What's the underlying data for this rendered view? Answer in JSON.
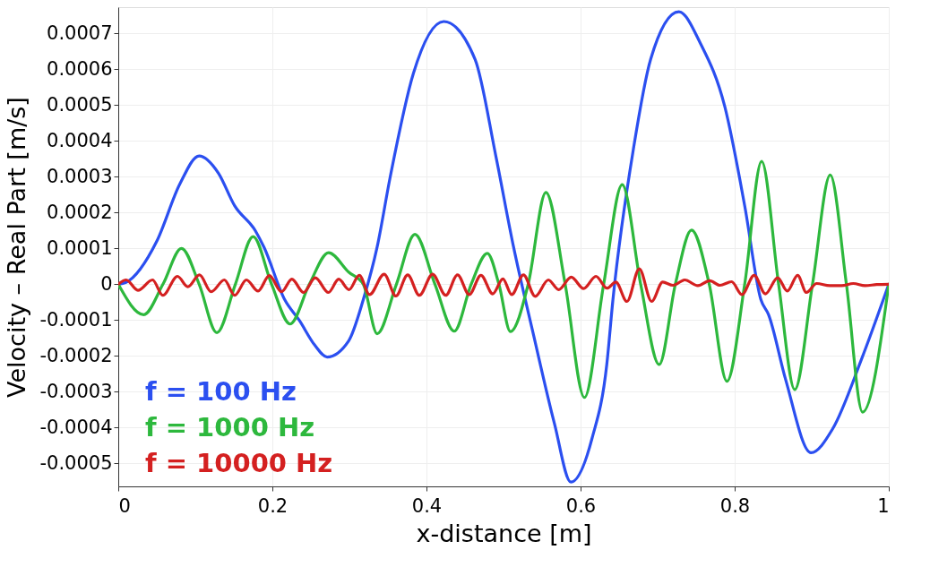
{
  "chart_data": {
    "type": "line",
    "xlabel": "x-distance [m]",
    "ylabel": "Velocity – Real Part [m/s]",
    "xlim": [
      0,
      1
    ],
    "xticks": [
      0,
      0.2,
      0.4,
      0.6,
      0.8,
      1
    ],
    "ylim": [
      -0.000564,
      0.000773
    ],
    "yticks": [
      -0.0005,
      -0.0004,
      -0.0003,
      -0.0002,
      -0.0001,
      0,
      0.0001,
      0.0002,
      0.0003,
      0.0004,
      0.0005,
      0.0006,
      0.0007
    ],
    "grid": true,
    "legend": "bottom left",
    "line_style": "solid",
    "marker": "none",
    "series": [
      {
        "name": "f = 100 Hz",
        "color": "#2b4ff0",
        "x": [
          0,
          0.01,
          0.05,
          0.08,
          0.105,
          0.13,
          0.151,
          0.178,
          0.189,
          0.216,
          0.235,
          0.255,
          0.271,
          0.299,
          0.318,
          0.336,
          0.353,
          0.383,
          0.4224,
          0.463,
          0.49,
          0.513,
          0.539,
          0.566,
          0.5875,
          0.615,
          0.634,
          0.642,
          0.669,
          0.691,
          0.7275,
          0.756,
          0.787,
          0.813,
          0.834,
          0.844,
          0.866,
          0.899,
          0.927,
          0.965,
          1
        ],
        "values": [
          0,
          5e-06,
          0.00012,
          0.00028,
          0.000358,
          0.00031,
          0.000219,
          0.000149,
          0.000104,
          -4.3e-05,
          -0.000101,
          -0.00017,
          -0.000203,
          -0.000158,
          -4.3e-05,
          0.000104,
          0.0003,
          0.000588,
          0.000733,
          0.000628,
          0.000358,
          0.000104,
          -0.000142,
          -0.000388,
          -0.000552,
          -0.000429,
          -0.000224,
          -4.3e-05,
          0.000383,
          0.000628,
          0.00076,
          0.00067,
          0.000497,
          0.000219,
          -4.3e-05,
          -8.5e-05,
          -0.000265,
          -0.00047,
          -0.000404,
          -0.000207,
          0
        ]
      },
      {
        "name": "f = 1000 Hz",
        "color": "#2db83d",
        "x": [
          0,
          0.033,
          0.058,
          0.082,
          0.105,
          0.128,
          0.152,
          0.175,
          0.199,
          0.223,
          0.248,
          0.273,
          0.299,
          0.318,
          0.336,
          0.361,
          0.385,
          0.411,
          0.436,
          0.458,
          0.479,
          0.494,
          0.509,
          0.532,
          0.555,
          0.58,
          0.605,
          0.63,
          0.654,
          0.678,
          0.702,
          0.723,
          0.744,
          0.767,
          0.79,
          0.813,
          0.835,
          0.857,
          0.878,
          0.901,
          0.924,
          0.945,
          0.966,
          1
        ],
        "values": [
          0,
          -8.5e-05,
          0,
          0.0001,
          0,
          -0.000135,
          0,
          0.000133,
          0,
          -0.000111,
          0,
          8.8e-05,
          3.4e-05,
          0,
          -0.000138,
          0,
          0.000139,
          0,
          -0.000131,
          0,
          8.6e-05,
          0,
          -0.000132,
          0,
          0.000256,
          0,
          -0.000316,
          0,
          0.000278,
          0,
          -0.000224,
          0,
          0.000151,
          0,
          -0.000271,
          0,
          0.000343,
          0,
          -0.000294,
          0,
          0.000305,
          0,
          -0.000357,
          0
        ]
      },
      {
        "name": "f = 10000 Hz",
        "color": "#d42020",
        "x": [
          0,
          0.0103,
          0.0255,
          0.0445,
          0.0578,
          0.0769,
          0.0902,
          0.1054,
          0.1206,
          0.1377,
          0.1511,
          0.1663,
          0.1815,
          0.196,
          0.2119,
          0.2253,
          0.2405,
          0.2557,
          0.2728,
          0.2861,
          0.2995,
          0.3128,
          0.3261,
          0.3451,
          0.3603,
          0.3756,
          0.3908,
          0.4079,
          0.425,
          0.4403,
          0.4555,
          0.4707,
          0.486,
          0.4992,
          0.5106,
          0.5259,
          0.5411,
          0.5582,
          0.5715,
          0.5879,
          0.6039,
          0.6199,
          0.6343,
          0.6457,
          0.6602,
          0.6762,
          0.6922,
          0.7066,
          0.7199,
          0.7352,
          0.7523,
          0.7675,
          0.7808,
          0.796,
          0.8094,
          0.8253,
          0.8398,
          0.8558,
          0.8683,
          0.8817,
          0.8931,
          0.9064,
          0.9235,
          0.9387,
          0.954,
          0.9692,
          0.9844,
          1
        ],
        "values": [
          0,
          1.2e-05,
          -1.7e-05,
          1.2e-05,
          -3.1e-05,
          2.2e-05,
          -7e-06,
          2.6e-05,
          -2.1e-05,
          1.2e-05,
          -3.1e-05,
          1.2e-05,
          -1.9e-05,
          2.4e-05,
          -2.1e-05,
          1.4e-05,
          -2.3e-05,
          1.8e-05,
          -2.3e-05,
          1.4e-05,
          -1.5e-05,
          2.5e-05,
          -2.9e-05,
          2.8e-05,
          -3.3e-05,
          2.6e-05,
          -3.1e-05,
          2.8e-05,
          -3.1e-05,
          2.6e-05,
          -2.9e-05,
          2.5e-05,
          -2.7e-05,
          1.5e-05,
          -2.9e-05,
          2.6e-05,
          -3.4e-05,
          1.2e-05,
          -1.5e-05,
          2e-05,
          -1.2e-05,
          2.2e-05,
          -1.1e-05,
          6e-06,
          -4.8e-05,
          4.3e-05,
          -4.8e-05,
          6e-06,
          -3e-06,
          1.2e-05,
          -4e-06,
          1e-05,
          -3e-06,
          7e-06,
          -2.9e-05,
          2.5e-05,
          -2.7e-05,
          1.8e-05,
          -1.9e-05,
          2.5e-05,
          -2.3e-05,
          2e-06,
          -4e-06,
          -4e-06,
          2e-06,
          -4e-06,
          -1e-06,
          0
        ]
      }
    ]
  }
}
